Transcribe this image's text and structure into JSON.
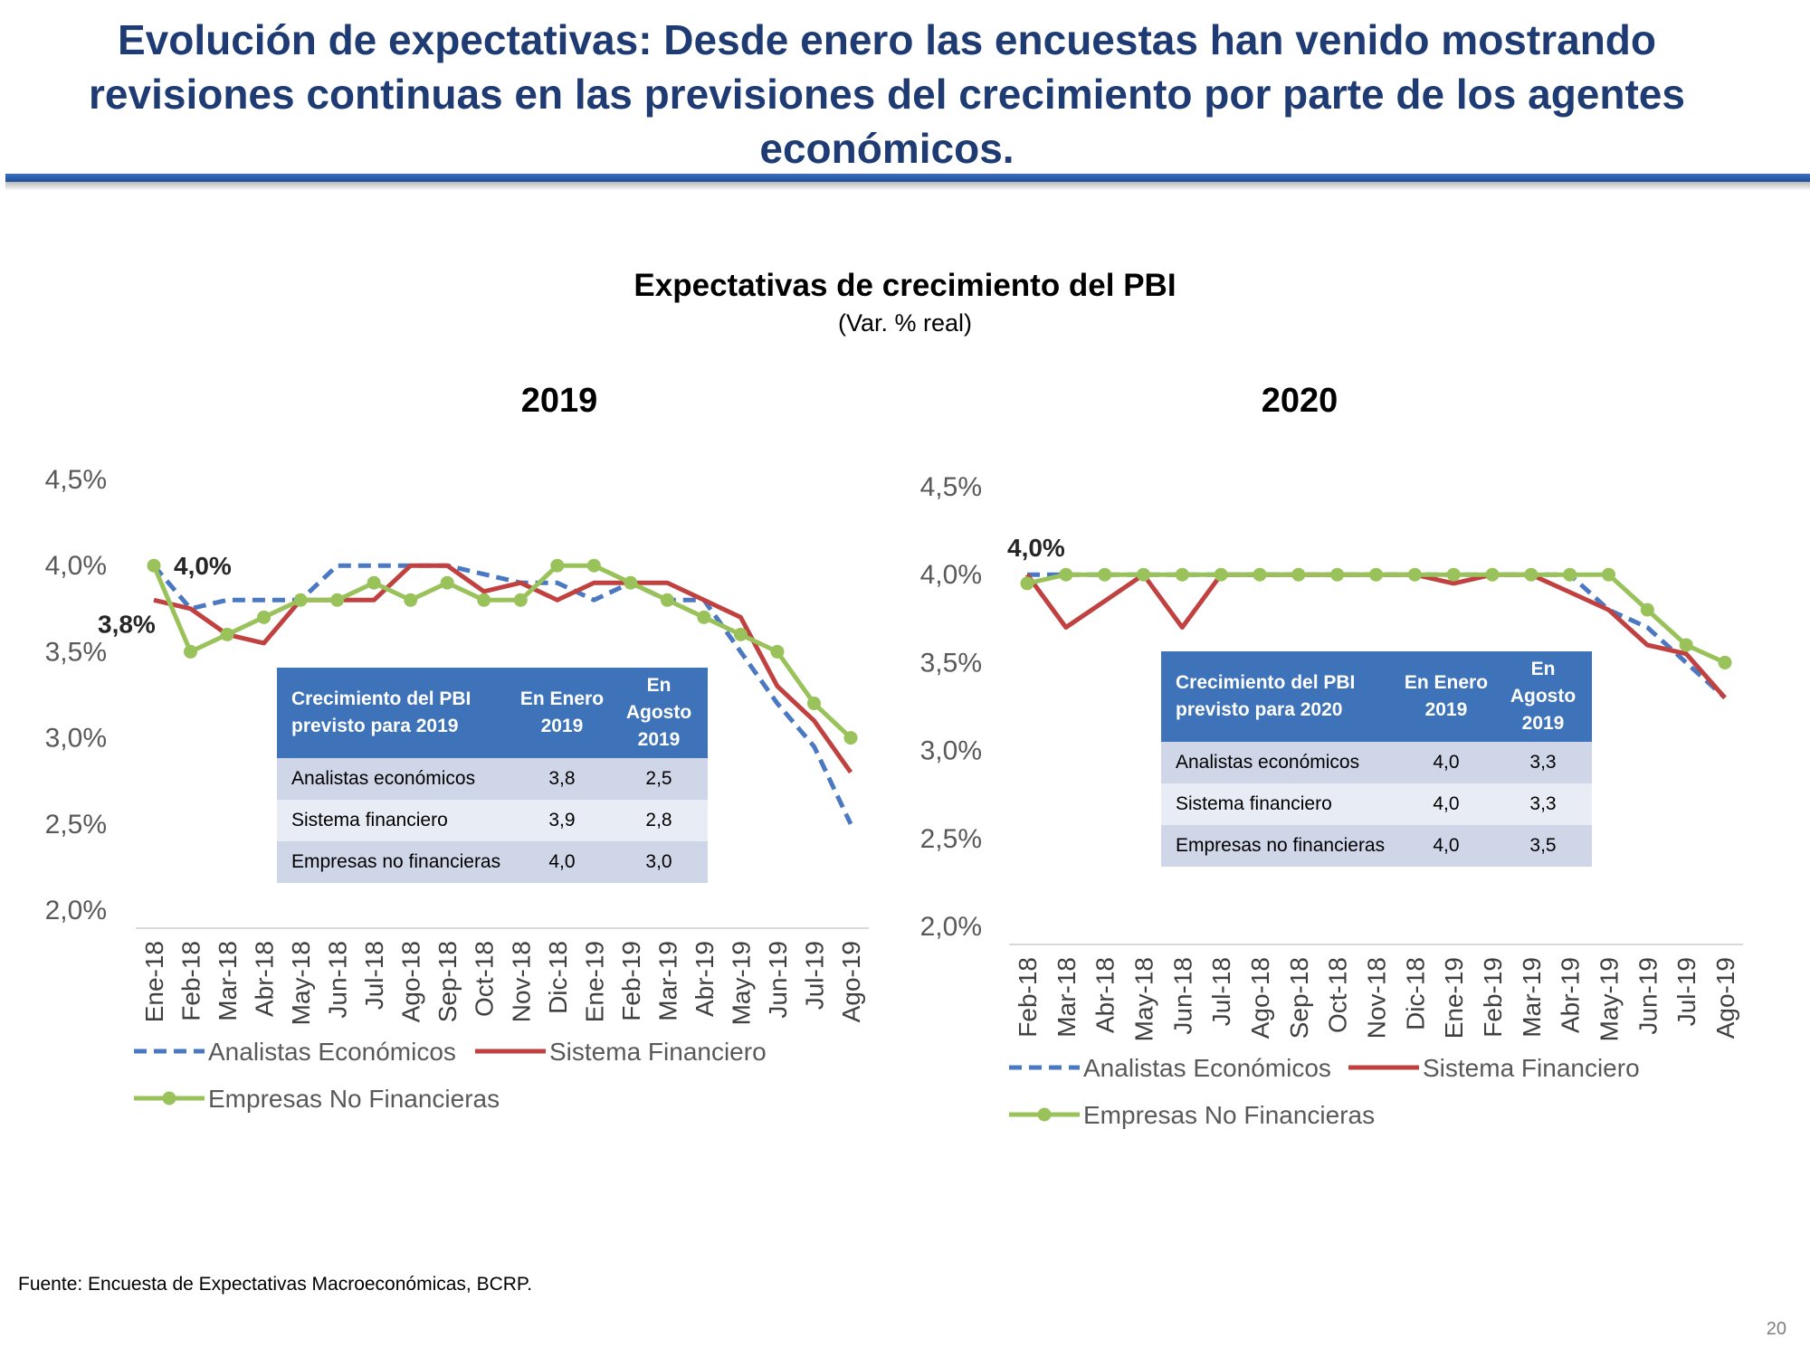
{
  "slide": {
    "title_lines": [
      "Evolución de expectativas: Desde enero las encuestas han venido mostrando",
      "revisiones continuas en las previsiones del crecimiento por parte de los agentes",
      "económicos."
    ],
    "chart_title": "Expectativas de crecimiento del PBI",
    "chart_subtitle": "(Var. % real)",
    "source": "Fuente: Encuesta de Expectativas Macroeconómicas, BCRP.",
    "page_number": "20"
  },
  "colors": {
    "title": "#1f3b73",
    "analistas": "#4a78c2",
    "sistema": "#c0413f",
    "empresas": "#9ac25a",
    "table_header": "#3e72b9"
  },
  "chart_data": [
    {
      "type": "line",
      "title": "2019",
      "x": [
        "Ene-18",
        "Feb-18",
        "Mar-18",
        "Abr-18",
        "May-18",
        "Jun-18",
        "Jul-18",
        "Ago-18",
        "Sep-18",
        "Oct-18",
        "Nov-18",
        "Dic-18",
        "Ene-19",
        "Feb-19",
        "Mar-19",
        "Abr-19",
        "May-19",
        "Jun-19",
        "Jul-19",
        "Ago-19"
      ],
      "ylim": [
        2.0,
        4.5
      ],
      "yticks": [
        "2,0%",
        "2,5%",
        "3,0%",
        "3,5%",
        "4,0%",
        "4,5%"
      ],
      "series": [
        {
          "name": "Analistas Económicos",
          "values": [
            4.0,
            3.75,
            3.8,
            3.8,
            3.8,
            4.0,
            4.0,
            4.0,
            4.0,
            3.95,
            3.9,
            3.9,
            3.8,
            3.9,
            3.8,
            3.8,
            3.5,
            3.2,
            2.95,
            2.5
          ]
        },
        {
          "name": "Sistema Financiero",
          "values": [
            3.8,
            3.75,
            3.6,
            3.55,
            3.8,
            3.8,
            3.8,
            4.0,
            4.0,
            3.85,
            3.9,
            3.8,
            3.9,
            3.9,
            3.9,
            3.8,
            3.7,
            3.3,
            3.1,
            2.8
          ]
        },
        {
          "name": "Empresas No Financieras",
          "values": [
            4.0,
            3.5,
            3.6,
            3.7,
            3.8,
            3.8,
            3.9,
            3.8,
            3.9,
            3.8,
            3.8,
            4.0,
            4.0,
            3.9,
            3.8,
            3.7,
            3.6,
            3.5,
            3.2,
            3.0
          ]
        }
      ],
      "annotations": [
        "4,0%",
        "3,8%"
      ],
      "table": {
        "header": [
          "Crecimiento del PBI previsto para 2019",
          "En Enero 2019",
          "En Agosto 2019"
        ],
        "rows": [
          {
            "label": "Analistas económicos",
            "enero": "3,8",
            "agosto": "2,5"
          },
          {
            "label": "Sistema financiero",
            "enero": "3,9",
            "agosto": "2,8"
          },
          {
            "label": "Empresas no financieras",
            "enero": "4,0",
            "agosto": "3,0"
          }
        ]
      }
    },
    {
      "type": "line",
      "title": "2020",
      "x": [
        "Feb-18",
        "Mar-18",
        "Abr-18",
        "May-18",
        "Jun-18",
        "Jul-18",
        "Ago-18",
        "Sep-18",
        "Oct-18",
        "Nov-18",
        "Dic-18",
        "Ene-19",
        "Feb-19",
        "Mar-19",
        "Abr-19",
        "May-19",
        "Jun-19",
        "Jul-19",
        "Ago-19"
      ],
      "ylim": [
        2.0,
        4.5
      ],
      "yticks": [
        "2,0%",
        "2,5%",
        "3,0%",
        "3,5%",
        "4,0%",
        "4,5%"
      ],
      "series": [
        {
          "name": "Analistas Económicos",
          "values": [
            4.0,
            4.0,
            4.0,
            4.0,
            4.0,
            4.0,
            4.0,
            4.0,
            4.0,
            4.0,
            4.0,
            4.0,
            4.0,
            4.0,
            4.0,
            3.8,
            3.7,
            3.5,
            3.3
          ]
        },
        {
          "name": "Sistema Financiero",
          "values": [
            4.0,
            3.7,
            3.85,
            4.0,
            3.7,
            4.0,
            4.0,
            4.0,
            4.0,
            4.0,
            4.0,
            3.95,
            4.0,
            4.0,
            3.9,
            3.8,
            3.6,
            3.55,
            3.3
          ]
        },
        {
          "name": "Empresas No Financieras",
          "values": [
            3.95,
            4.0,
            4.0,
            4.0,
            4.0,
            4.0,
            4.0,
            4.0,
            4.0,
            4.0,
            4.0,
            4.0,
            4.0,
            4.0,
            4.0,
            4.0,
            3.8,
            3.6,
            3.5
          ]
        }
      ],
      "annotations": [
        "4,0%"
      ],
      "table": {
        "header": [
          "Crecimiento del PBI previsto para 2020",
          "En Enero 2019",
          "En Agosto 2019"
        ],
        "rows": [
          {
            "label": "Analistas económicos",
            "enero": "4,0",
            "agosto": "3,3"
          },
          {
            "label": "Sistema financiero",
            "enero": "4,0",
            "agosto": "3,3"
          },
          {
            "label": "Empresas no financieras",
            "enero": "4,0",
            "agosto": "3,5"
          }
        ]
      }
    }
  ]
}
